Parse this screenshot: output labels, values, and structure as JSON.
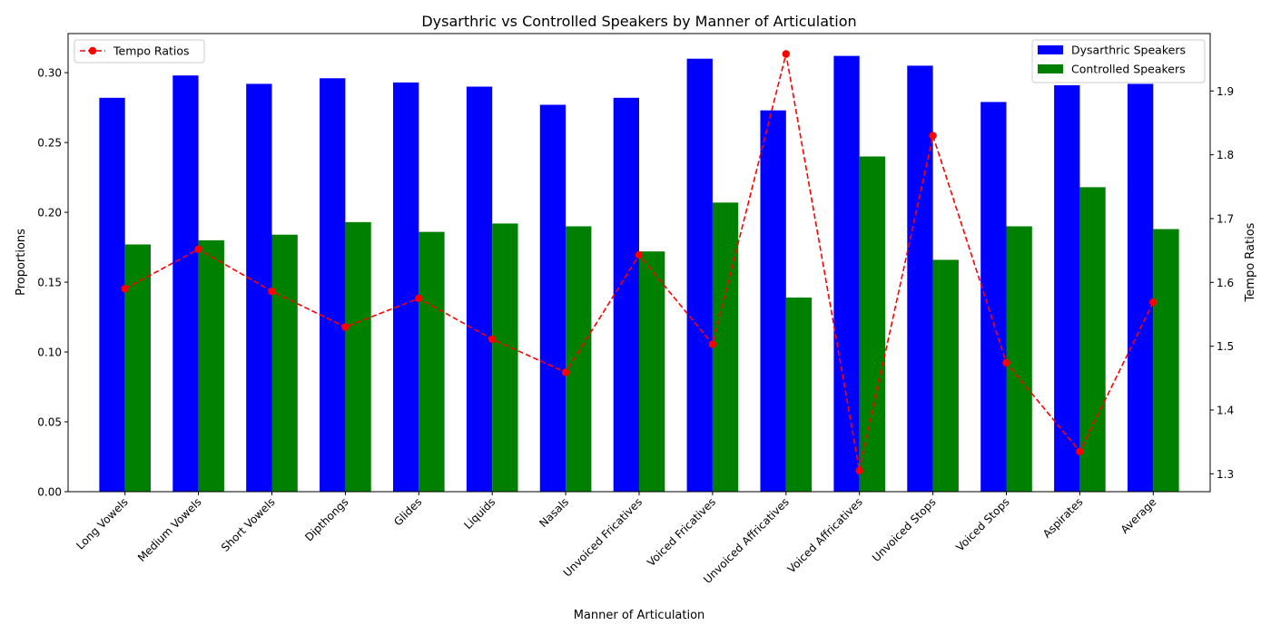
{
  "chart_data": {
    "type": "bar",
    "title": "Dysarthric vs Controlled Speakers by Manner of Articulation",
    "xlabel": "Manner of Articulation",
    "ylabel": "Proportions",
    "y2label": "Tempo Ratios",
    "categories": [
      "Long Vowels",
      "Medium Vowels",
      "Short Vowels",
      "Dipthongs",
      "Glides",
      "Liquids",
      "Nasals",
      "Unvoiced Fricatives",
      "Voiced Fricatives",
      "Unvoiced Affricatives",
      "Voiced Affricatives",
      "Unvoiced Stops",
      "Voiced Stops",
      "Aspirates",
      "Average"
    ],
    "ylim": [
      0,
      0.328
    ],
    "y2lim": [
      1.272,
      1.99
    ],
    "yticks": [
      "0.00",
      "0.05",
      "0.10",
      "0.15",
      "0.20",
      "0.25",
      "0.30"
    ],
    "y2ticks": [
      "1.3",
      "1.4",
      "1.5",
      "1.6",
      "1.7",
      "1.8",
      "1.9"
    ],
    "series": [
      {
        "name": "Dysarthric Speakers",
        "kind": "bar",
        "axis": "left",
        "color": "#0000ff",
        "values": [
          0.282,
          0.298,
          0.292,
          0.296,
          0.293,
          0.29,
          0.277,
          0.282,
          0.31,
          0.273,
          0.312,
          0.305,
          0.279,
          0.291,
          0.292
        ]
      },
      {
        "name": "Controlled Speakers",
        "kind": "bar",
        "axis": "left",
        "color": "#008000",
        "values": [
          0.177,
          0.18,
          0.184,
          0.193,
          0.186,
          0.192,
          0.19,
          0.172,
          0.207,
          0.139,
          0.24,
          0.166,
          0.19,
          0.218,
          0.188
        ]
      },
      {
        "name": "Tempo Ratios",
        "kind": "line",
        "axis": "right",
        "color": "#ff0000",
        "values": [
          1.59,
          1.652,
          1.586,
          1.53,
          1.575,
          1.511,
          1.459,
          1.643,
          1.503,
          1.958,
          1.305,
          1.83,
          1.474,
          1.335,
          1.569
        ]
      }
    ],
    "legend_left_placement": "top-left",
    "legend_right_placement": "top-right",
    "grid": false
  }
}
